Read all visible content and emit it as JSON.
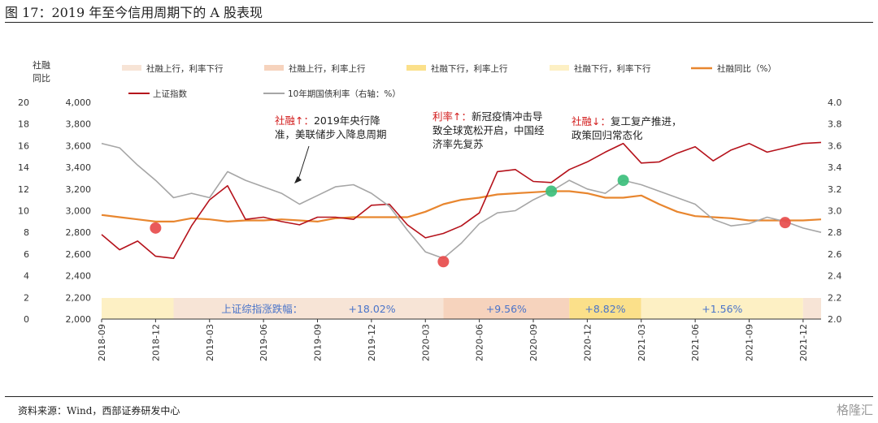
{
  "title": "图 17：2019 年至今信用周期下的 A 股表现",
  "source": "资料来源：Wind，西部证券研发中心",
  "watermark": "格隆汇",
  "chart_data": {
    "type": "line",
    "title": "图 17：2019 年至今信用周期下的 A 股表现",
    "left_axis_title_1": "社融",
    "left_axis_title_2": "同比",
    "left_axis_ticks": [
      "20",
      "18",
      "16",
      "14",
      "12",
      "10",
      "8",
      "6",
      "4",
      "2",
      "0"
    ],
    "left_ylim": [
      0,
      20
    ],
    "mid_axis_ticks": [
      "4,000",
      "3,800",
      "3,600",
      "3,400",
      "3,200",
      "3,000",
      "2,800",
      "2,600",
      "2,400",
      "2,200",
      "2,000"
    ],
    "mid_ylim": [
      2000,
      4000
    ],
    "right_axis_ticks": [
      "4.0",
      "3.8",
      "3.6",
      "3.4",
      "3.2",
      "3.0",
      "2.8",
      "2.6",
      "2.4",
      "2.2",
      "2.0"
    ],
    "right_ylim": [
      2.0,
      4.0
    ],
    "x_start": "2018-09",
    "x_end": "2022-01",
    "x_ticks": [
      "2018-09",
      "2018-12",
      "2019-03",
      "2019-06",
      "2019-09",
      "2019-12",
      "2020-03",
      "2020-06",
      "2020-09",
      "2020-12",
      "2021-03",
      "2021-06",
      "2021-09",
      "2021-12"
    ],
    "legend": [
      {
        "name": "社融上行，利率下行",
        "kind": "band",
        "color": "#f7e4d6"
      },
      {
        "name": "社融上行，利率上行",
        "kind": "band",
        "color": "#f6d3bd"
      },
      {
        "name": "社融下行，利率上行",
        "kind": "band",
        "color": "#fbe08a"
      },
      {
        "name": "社融下行，利率下行",
        "kind": "band",
        "color": "#fdf0c4"
      },
      {
        "name": "社融同比（%）",
        "kind": "line",
        "color": "#e8862f"
      },
      {
        "name": "上证指数",
        "kind": "line",
        "color": "#b5121b"
      },
      {
        "name": "10年期国债利率（右轴：%）",
        "kind": "line",
        "color": "#a6a6a6"
      }
    ],
    "bands": [
      {
        "start": "2018-09",
        "end": "2019-01",
        "color": "#fdf0c4",
        "label": ""
      },
      {
        "start": "2019-01",
        "end": "2020-04",
        "color": "#f7e4d6",
        "label": "上证综指涨跌幅：　　　　　+18.02%"
      },
      {
        "start": "2020-04",
        "end": "2020-11",
        "color": "#f6d3bd",
        "label": "+9.56%"
      },
      {
        "start": "2020-11",
        "end": "2021-03",
        "color": "#fbe08a",
        "label": "+8.82%"
      },
      {
        "start": "2021-03",
        "end": "2021-12",
        "color": "#fdf0c4",
        "label": "+1.56%"
      },
      {
        "start": "2021-12",
        "end": "2022-01",
        "color": "#f7e4d6",
        "label": ""
      }
    ],
    "series": [
      {
        "name": "社融同比（%）",
        "axis": "left",
        "color": "#e8862f",
        "points": [
          [
            "2018-09",
            9.6
          ],
          [
            "2018-10",
            9.4
          ],
          [
            "2018-11",
            9.2
          ],
          [
            "2018-12",
            9.0
          ],
          [
            "2019-01",
            9.0
          ],
          [
            "2019-02",
            9.3
          ],
          [
            "2019-03",
            9.2
          ],
          [
            "2019-04",
            9.0
          ],
          [
            "2019-05",
            9.1
          ],
          [
            "2019-06",
            9.1
          ],
          [
            "2019-07",
            9.2
          ],
          [
            "2019-08",
            9.1
          ],
          [
            "2019-09",
            9.0
          ],
          [
            "2019-10",
            9.3
          ],
          [
            "2019-11",
            9.4
          ],
          [
            "2019-12",
            9.4
          ],
          [
            "2020-01",
            9.4
          ],
          [
            "2020-02",
            9.4
          ],
          [
            "2020-03",
            9.9
          ],
          [
            "2020-04",
            10.6
          ],
          [
            "2020-05",
            11.0
          ],
          [
            "2020-06",
            11.2
          ],
          [
            "2020-07",
            11.5
          ],
          [
            "2020-08",
            11.6
          ],
          [
            "2020-09",
            11.7
          ],
          [
            "2020-10",
            11.8
          ],
          [
            "2020-11",
            11.8
          ],
          [
            "2020-12",
            11.6
          ],
          [
            "2021-01",
            11.2
          ],
          [
            "2021-02",
            11.2
          ],
          [
            "2021-03",
            11.4
          ],
          [
            "2021-04",
            10.6
          ],
          [
            "2021-05",
            9.9
          ],
          [
            "2021-06",
            9.5
          ],
          [
            "2021-07",
            9.4
          ],
          [
            "2021-08",
            9.3
          ],
          [
            "2021-09",
            9.1
          ],
          [
            "2021-10",
            9.1
          ],
          [
            "2021-11",
            9.1
          ],
          [
            "2021-12",
            9.1
          ],
          [
            "2022-01",
            9.2
          ]
        ]
      },
      {
        "name": "上证指数",
        "axis": "mid",
        "color": "#b5121b",
        "points": [
          [
            "2018-09",
            2780
          ],
          [
            "2018-10",
            2640
          ],
          [
            "2018-11",
            2720
          ],
          [
            "2018-12",
            2580
          ],
          [
            "2019-01",
            2560
          ],
          [
            "2019-02",
            2860
          ],
          [
            "2019-03",
            3100
          ],
          [
            "2019-04",
            3230
          ],
          [
            "2019-05",
            2920
          ],
          [
            "2019-06",
            2940
          ],
          [
            "2019-07",
            2900
          ],
          [
            "2019-08",
            2870
          ],
          [
            "2019-09",
            2940
          ],
          [
            "2019-10",
            2940
          ],
          [
            "2019-11",
            2920
          ],
          [
            "2019-12",
            3050
          ],
          [
            "2020-01",
            3060
          ],
          [
            "2020-02",
            2870
          ],
          [
            "2020-03",
            2750
          ],
          [
            "2020-04",
            2790
          ],
          [
            "2020-05",
            2860
          ],
          [
            "2020-06",
            2980
          ],
          [
            "2020-07",
            3360
          ],
          [
            "2020-08",
            3380
          ],
          [
            "2020-09",
            3270
          ],
          [
            "2020-10",
            3260
          ],
          [
            "2020-11",
            3380
          ],
          [
            "2020-12",
            3450
          ],
          [
            "2021-01",
            3540
          ],
          [
            "2021-02",
            3620
          ],
          [
            "2021-03",
            3440
          ],
          [
            "2021-04",
            3450
          ],
          [
            "2021-05",
            3530
          ],
          [
            "2021-06",
            3590
          ],
          [
            "2021-07",
            3460
          ],
          [
            "2021-08",
            3560
          ],
          [
            "2021-09",
            3620
          ],
          [
            "2021-10",
            3540
          ],
          [
            "2021-11",
            3580
          ],
          [
            "2021-12",
            3620
          ],
          [
            "2022-01",
            3630
          ]
        ]
      },
      {
        "name": "10年期国债利率（右轴：%）",
        "axis": "right",
        "color": "#a6a6a6",
        "points": [
          [
            "2018-09",
            3.62
          ],
          [
            "2018-10",
            3.58
          ],
          [
            "2018-11",
            3.42
          ],
          [
            "2018-12",
            3.28
          ],
          [
            "2019-01",
            3.12
          ],
          [
            "2019-02",
            3.16
          ],
          [
            "2019-03",
            3.12
          ],
          [
            "2019-04",
            3.36
          ],
          [
            "2019-05",
            3.28
          ],
          [
            "2019-06",
            3.22
          ],
          [
            "2019-07",
            3.16
          ],
          [
            "2019-08",
            3.06
          ],
          [
            "2019-09",
            3.14
          ],
          [
            "2019-10",
            3.22
          ],
          [
            "2019-11",
            3.24
          ],
          [
            "2019-12",
            3.16
          ],
          [
            "2020-01",
            3.04
          ],
          [
            "2020-02",
            2.82
          ],
          [
            "2020-03",
            2.62
          ],
          [
            "2020-04",
            2.56
          ],
          [
            "2020-05",
            2.7
          ],
          [
            "2020-06",
            2.88
          ],
          [
            "2020-07",
            2.98
          ],
          [
            "2020-08",
            3.0
          ],
          [
            "2020-09",
            3.1
          ],
          [
            "2020-10",
            3.18
          ],
          [
            "2020-11",
            3.28
          ],
          [
            "2020-12",
            3.2
          ],
          [
            "2021-01",
            3.16
          ],
          [
            "2021-02",
            3.28
          ],
          [
            "2021-03",
            3.24
          ],
          [
            "2021-04",
            3.18
          ],
          [
            "2021-05",
            3.12
          ],
          [
            "2021-06",
            3.06
          ],
          [
            "2021-07",
            2.92
          ],
          [
            "2021-08",
            2.86
          ],
          [
            "2021-09",
            2.88
          ],
          [
            "2021-10",
            2.94
          ],
          [
            "2021-11",
            2.9
          ],
          [
            "2021-12",
            2.84
          ],
          [
            "2022-01",
            2.8
          ]
        ]
      }
    ],
    "markers": [
      {
        "date": "2018-12",
        "value": 8.4,
        "axis": "left",
        "color": "#e74c4c"
      },
      {
        "date": "2020-04",
        "value": 2.53,
        "axis": "right",
        "color": "#e74c4c"
      },
      {
        "date": "2020-10",
        "value": 11.8,
        "axis": "left",
        "color": "#3cbf7c"
      },
      {
        "date": "2021-02",
        "value": 3.28,
        "axis": "right",
        "color": "#3cbf7c"
      },
      {
        "date": "2021-11",
        "value": 8.9,
        "axis": "left",
        "color": "#e74c4c"
      }
    ],
    "annotations": [
      {
        "red": "社融↑：",
        "line1": "2019年央行降",
        "line2": "准，美联储步入降息周期"
      },
      {
        "red": "利率↑：",
        "line1": "新冠疫情冲击导",
        "line2": "致全球宽松开启，中国经",
        "line3": "济率先复苏"
      },
      {
        "red": "社融↓：",
        "line1": "复工复产推进，",
        "line2": "政策回归常态化"
      }
    ]
  }
}
